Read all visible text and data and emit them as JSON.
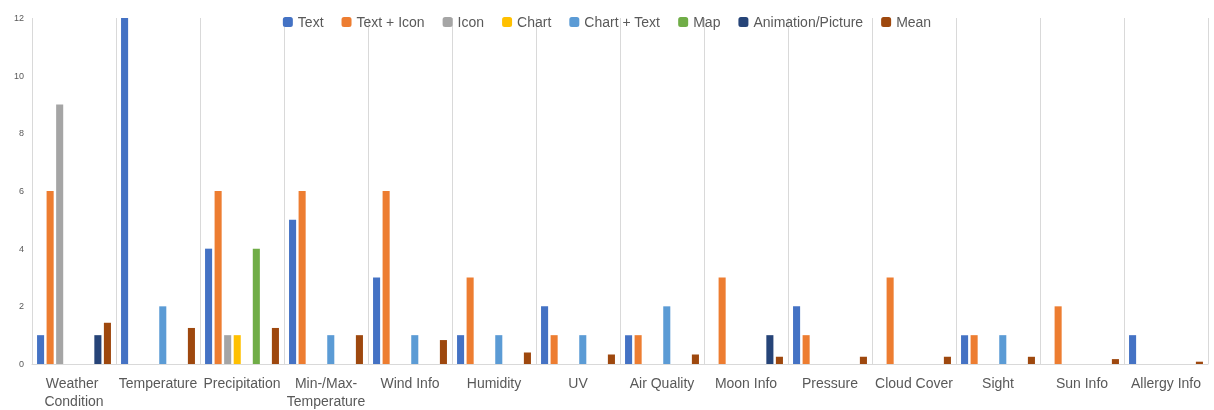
{
  "chart_data": {
    "type": "bar",
    "categories": [
      "Weather Condition",
      "Temperature",
      "Precipitation",
      "Min-/Max-Temperature",
      "Wind Info",
      "Humidity",
      "UV",
      "Air Quality",
      "Moon Info",
      "Pressure",
      "Cloud Cover",
      "Sight",
      "Sun Info",
      "Allergy Info"
    ],
    "series": [
      {
        "name": "Text",
        "color": "#4472c4",
        "values": [
          1,
          12,
          4,
          5,
          3,
          1,
          2,
          1,
          0,
          2,
          0,
          1,
          0,
          1
        ]
      },
      {
        "name": "Text + Icon",
        "color": "#ed7d31",
        "values": [
          6,
          0,
          6,
          6,
          6,
          3,
          1,
          1,
          3,
          1,
          3,
          1,
          2,
          0
        ]
      },
      {
        "name": "Icon",
        "color": "#a5a5a5",
        "values": [
          9,
          0,
          1,
          0,
          0,
          0,
          0,
          0,
          0,
          0,
          0,
          0,
          0,
          0
        ]
      },
      {
        "name": "Chart",
        "color": "#ffc000",
        "values": [
          0,
          0,
          1,
          0,
          0,
          0,
          0,
          0,
          0,
          0,
          0,
          0,
          0,
          0
        ]
      },
      {
        "name": "Chart + Text",
        "color": "#5b9bd5",
        "values": [
          0,
          2,
          0,
          1,
          1,
          1,
          1,
          2,
          0,
          0,
          0,
          1,
          0,
          0
        ]
      },
      {
        "name": "Map",
        "color": "#70ad47",
        "values": [
          0,
          0,
          4,
          0,
          0,
          0,
          0,
          0,
          0,
          0,
          0,
          0,
          0,
          0
        ]
      },
      {
        "name": "Animation/Picture",
        "color": "#264478",
        "values": [
          1,
          0,
          0,
          0,
          0,
          0,
          0,
          0,
          1,
          0,
          0,
          0,
          0,
          0
        ]
      },
      {
        "name": "Mean",
        "color": "#9e480e",
        "values": [
          1.43,
          1.25,
          1.25,
          1,
          0.83,
          0.4,
          0.33,
          0.33,
          0.25,
          0.25,
          0.25,
          0.25,
          0.17,
          0.08
        ]
      }
    ],
    "ylim": [
      0,
      12
    ],
    "yticks": [
      0,
      2,
      4,
      6,
      8,
      10,
      12
    ],
    "grid": "x",
    "legend": "top"
  }
}
